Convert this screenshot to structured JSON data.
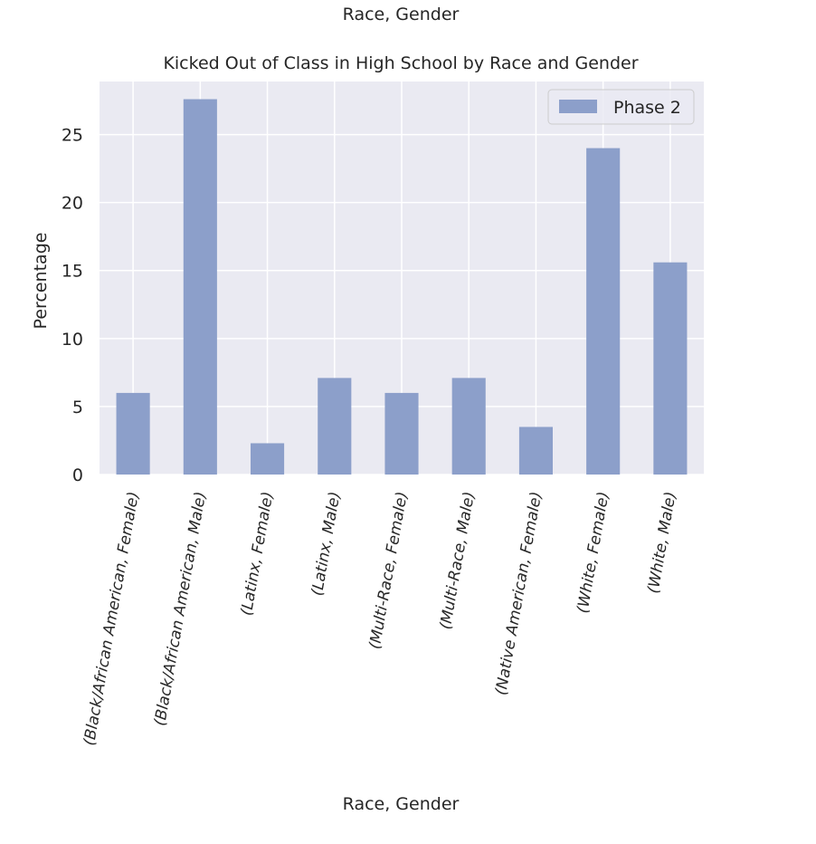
{
  "figure": {
    "suptitle": "Race, Gender"
  },
  "chart_data": {
    "type": "bar",
    "title": "Kicked Out of Class in High School by Race and Gender",
    "xlabel": "Race, Gender",
    "ylabel": "Percentage",
    "categories": [
      "(Black/African American, Female)",
      "(Black/African American, Male)",
      "(Latinx, Female)",
      "(Latinx, Male)",
      "(Multi-Race, Female)",
      "(Multi-Race, Male)",
      "(Native American, Female)",
      "(White, Female)",
      "(White, Male)"
    ],
    "series": [
      {
        "name": "Phase 2",
        "values": [
          6.0,
          27.6,
          2.3,
          7.1,
          6.0,
          7.1,
          3.5,
          24.0,
          15.6
        ],
        "color": "#8c9fca"
      }
    ],
    "ylim": [
      0,
      28.9
    ],
    "yticks": [
      0,
      5,
      10,
      15,
      20,
      25
    ],
    "grid": true,
    "legend_position": "top-right",
    "colors": {
      "axes_background": "#eaeaf2",
      "grid": "#ffffff",
      "bar": "#8c9fca"
    }
  }
}
